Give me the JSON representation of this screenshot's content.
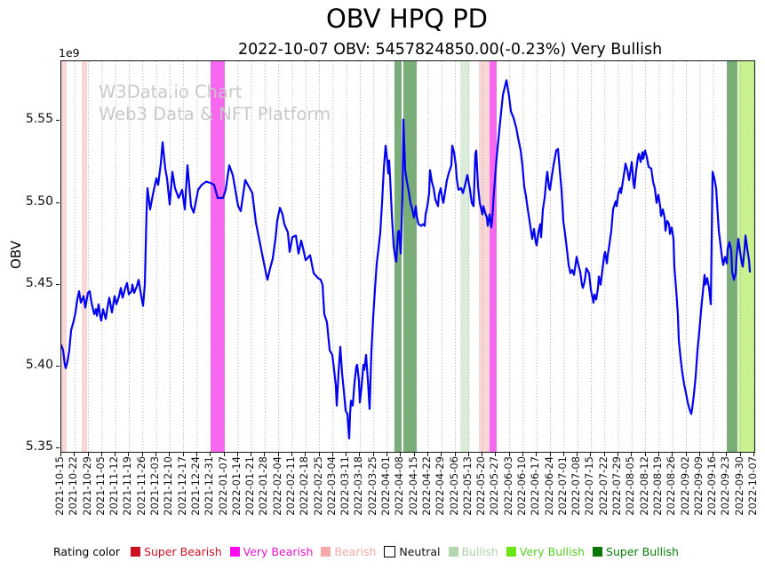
{
  "title": "OBV HPQ PD",
  "subtitle": "2022-10-07 OBV: 5457824850.00(-0.23%) Very Bullish",
  "watermark": {
    "line1": "W3Data.io Chart",
    "line2": "Web3 Data & NFT Platform"
  },
  "y_axis": {
    "label": "OBV",
    "offset_label": "1e9",
    "ticks": [
      5.35,
      5.4,
      5.45,
      5.5,
      5.55
    ]
  },
  "x_axis": {
    "tick_labels": [
      "2021-10-15",
      "2021-10-22",
      "2021-10-29",
      "2021-11-05",
      "2021-11-12",
      "2021-11-19",
      "2021-11-26",
      "2021-12-03",
      "2021-12-10",
      "2021-12-17",
      "2021-12-24",
      "2021-12-31",
      "2022-01-07",
      "2022-01-14",
      "2022-01-21",
      "2022-01-28",
      "2022-02-04",
      "2022-02-11",
      "2022-02-18",
      "2022-02-25",
      "2022-03-04",
      "2022-03-11",
      "2022-03-18",
      "2022-03-25",
      "2022-04-01",
      "2022-04-08",
      "2022-04-15",
      "2022-04-22",
      "2022-04-29",
      "2022-05-06",
      "2022-05-13",
      "2022-05-20",
      "2022-05-27",
      "2022-06-03",
      "2022-06-10",
      "2022-06-17",
      "2022-06-24",
      "2022-07-01",
      "2022-07-08",
      "2022-07-15",
      "2022-07-22",
      "2022-07-29",
      "2022-08-05",
      "2022-08-12",
      "2022-08-19",
      "2022-08-26",
      "2022-09-02",
      "2022-09-09",
      "2022-09-16",
      "2022-09-23",
      "2022-09-30",
      "2022-10-07"
    ]
  },
  "legend": {
    "title": "Rating color",
    "items": [
      {
        "label": "Super Bearish",
        "swatch": "#cc1122",
        "text_color": "#cc1122",
        "border": false
      },
      {
        "label": "Very Bearish",
        "swatch": "#fb0cf0",
        "text_color": "#e516c8",
        "border": false
      },
      {
        "label": "Bearish",
        "swatch": "#f7a8a8",
        "text_color": "#f5a9a9",
        "border": false
      },
      {
        "label": "Neutral",
        "swatch": "#ffffff",
        "text_color": "#111111",
        "border": true
      },
      {
        "label": "Bullish",
        "swatch": "#b2d7af",
        "text_color": "#aed2ab",
        "border": false
      },
      {
        "label": "Very Bullish",
        "swatch": "#69e613",
        "text_color": "#58cf25",
        "border": false
      },
      {
        "label": "Super Bullish",
        "swatch": "#087808",
        "text_color": "#0b7c0b",
        "border": false
      }
    ]
  },
  "colors": {
    "line": "#0202f0",
    "grid": "#9a9a9a",
    "watermark": "#c9c9c9",
    "bands": {
      "Super Bearish": "#e06060",
      "Very Bearish": "#f767ef",
      "Bearish": "#f9d7d7",
      "Neutral": "#ffffff",
      "Bullish": "#dcecdb",
      "Very Bullish": "#c9f18f",
      "Super Bullish": "#79ae79"
    }
  },
  "chart_data": {
    "type": "line",
    "title": "OBV HPQ PD",
    "series_name": "OBV",
    "ylabel": "OBV",
    "unit": "1e9",
    "ylim": [
      5.3478,
      5.5866
    ],
    "x_range": [
      "2021-10-15",
      "2022-10-07"
    ],
    "x_span": 780,
    "x_note": "x is position along the time axis, 0 = 2021-10-15, 780 = 2022-10-07 (daily OBV samples)",
    "grid": "vertical-dotted-weekly",
    "legend_position": "bottom",
    "last_date": "2022-10-07",
    "last_value": "5457824850.00",
    "last_change_pct": "-0.23%",
    "last_rating": "Very Bullish",
    "rating_bands": [
      {
        "start": 0,
        "end": 6,
        "rating": "Bearish"
      },
      {
        "start": 23,
        "end": 29,
        "rating": "Bearish"
      },
      {
        "start": 168,
        "end": 184,
        "rating": "Very Bearish"
      },
      {
        "start": 375,
        "end": 383,
        "rating": "Super Bullish"
      },
      {
        "start": 385,
        "end": 400,
        "rating": "Super Bullish"
      },
      {
        "start": 449,
        "end": 459,
        "rating": "Bullish"
      },
      {
        "start": 470,
        "end": 482,
        "rating": "Bearish"
      },
      {
        "start": 482,
        "end": 490,
        "rating": "Very Bearish"
      },
      {
        "start": 749,
        "end": 761,
        "rating": "Super Bullish"
      },
      {
        "start": 762,
        "end": 780,
        "rating": "Very Bullish"
      }
    ],
    "points": [
      [
        0,
        5.413
      ],
      [
        2,
        5.41
      ],
      [
        4,
        5.401
      ],
      [
        5,
        5.399
      ],
      [
        7,
        5.403
      ],
      [
        9,
        5.41
      ],
      [
        11,
        5.422
      ],
      [
        14,
        5.428
      ],
      [
        16,
        5.433
      ],
      [
        18,
        5.441
      ],
      [
        20,
        5.446
      ],
      [
        22,
        5.439
      ],
      [
        25,
        5.443
      ],
      [
        27,
        5.436
      ],
      [
        30,
        5.445
      ],
      [
        32,
        5.446
      ],
      [
        34,
        5.439
      ],
      [
        37,
        5.432
      ],
      [
        39,
        5.435
      ],
      [
        40,
        5.431
      ],
      [
        42,
        5.438
      ],
      [
        44,
        5.43
      ],
      [
        45,
        5.428
      ],
      [
        47,
        5.435
      ],
      [
        50,
        5.429
      ],
      [
        52,
        5.436
      ],
      [
        54,
        5.442
      ],
      [
        57,
        5.433
      ],
      [
        60,
        5.443
      ],
      [
        62,
        5.438
      ],
      [
        65,
        5.443
      ],
      [
        67,
        5.448
      ],
      [
        69,
        5.442
      ],
      [
        72,
        5.448
      ],
      [
        74,
        5.451
      ],
      [
        76,
        5.444
      ],
      [
        79,
        5.446
      ],
      [
        80,
        5.45
      ],
      [
        82,
        5.445
      ],
      [
        85,
        5.449
      ],
      [
        87,
        5.453
      ],
      [
        89,
        5.446
      ],
      [
        92,
        5.437
      ],
      [
        94,
        5.45
      ],
      [
        96,
        5.495
      ],
      [
        97,
        5.509
      ],
      [
        100,
        5.496
      ],
      [
        103,
        5.505
      ],
      [
        107,
        5.515
      ],
      [
        109,
        5.511
      ],
      [
        112,
        5.524
      ],
      [
        114,
        5.537
      ],
      [
        117,
        5.521
      ],
      [
        119,
        5.515
      ],
      [
        122,
        5.499
      ],
      [
        125,
        5.519
      ],
      [
        128,
        5.509
      ],
      [
        132,
        5.503
      ],
      [
        136,
        5.508
      ],
      [
        139,
        5.496
      ],
      [
        142,
        5.523
      ],
      [
        146,
        5.498
      ],
      [
        149,
        5.494
      ],
      [
        154,
        5.508
      ],
      [
        158,
        5.511
      ],
      [
        163,
        5.513
      ],
      [
        169,
        5.512
      ],
      [
        172,
        5.511
      ],
      [
        176,
        5.503
      ],
      [
        182,
        5.503
      ],
      [
        185,
        5.508
      ],
      [
        189,
        5.523
      ],
      [
        193,
        5.517
      ],
      [
        199,
        5.498
      ],
      [
        202,
        5.495
      ],
      [
        207,
        5.514
      ],
      [
        211,
        5.51
      ],
      [
        215,
        5.506
      ],
      [
        219,
        5.488
      ],
      [
        223,
        5.477
      ],
      [
        227,
        5.466
      ],
      [
        230,
        5.458
      ],
      [
        232,
        5.453
      ],
      [
        235,
        5.46
      ],
      [
        238,
        5.466
      ],
      [
        241,
        5.478
      ],
      [
        243,
        5.489
      ],
      [
        246,
        5.497
      ],
      [
        249,
        5.493
      ],
      [
        251,
        5.487
      ],
      [
        255,
        5.482
      ],
      [
        257,
        5.47
      ],
      [
        260,
        5.479
      ],
      [
        264,
        5.48
      ],
      [
        267,
        5.469
      ],
      [
        270,
        5.477
      ],
      [
        273,
        5.47
      ],
      [
        275,
        5.465
      ],
      [
        280,
        5.468
      ],
      [
        284,
        5.457
      ],
      [
        289,
        5.454
      ],
      [
        292,
        5.453
      ],
      [
        294,
        5.45
      ],
      [
        296,
        5.432
      ],
      [
        299,
        5.427
      ],
      [
        302,
        5.41
      ],
      [
        305,
        5.407
      ],
      [
        307,
        5.398
      ],
      [
        309,
        5.388
      ],
      [
        310,
        5.376
      ],
      [
        312,
        5.396
      ],
      [
        314,
        5.412
      ],
      [
        316,
        5.396
      ],
      [
        318,
        5.385
      ],
      [
        320,
        5.373
      ],
      [
        322,
        5.371
      ],
      [
        324,
        5.356
      ],
      [
        325,
        5.371
      ],
      [
        326,
        5.379
      ],
      [
        328,
        5.376
      ],
      [
        330,
        5.39
      ],
      [
        332,
        5.4
      ],
      [
        333,
        5.401
      ],
      [
        335,
        5.391
      ],
      [
        336,
        5.378
      ],
      [
        338,
        5.388
      ],
      [
        340,
        5.401
      ],
      [
        341,
        5.398
      ],
      [
        343,
        5.407
      ],
      [
        345,
        5.392
      ],
      [
        347,
        5.374
      ],
      [
        349,
        5.409
      ],
      [
        351,
        5.43
      ],
      [
        353,
        5.447
      ],
      [
        355,
        5.463
      ],
      [
        357,
        5.472
      ],
      [
        359,
        5.482
      ],
      [
        361,
        5.5
      ],
      [
        363,
        5.521
      ],
      [
        365,
        5.535
      ],
      [
        367,
        5.525
      ],
      [
        368,
        5.518
      ],
      [
        369,
        5.526
      ],
      [
        370,
        5.516
      ],
      [
        372,
        5.493
      ],
      [
        374,
        5.474
      ],
      [
        376,
        5.466
      ],
      [
        377,
        5.464
      ],
      [
        379,
        5.482
      ],
      [
        380,
        5.483
      ],
      [
        382,
        5.469
      ],
      [
        384,
        5.505
      ],
      [
        385,
        5.551
      ],
      [
        387,
        5.52
      ],
      [
        389,
        5.513
      ],
      [
        391,
        5.507
      ],
      [
        393,
        5.5
      ],
      [
        395,
        5.496
      ],
      [
        397,
        5.491
      ],
      [
        399,
        5.498
      ],
      [
        400,
        5.492
      ],
      [
        402,
        5.487
      ],
      [
        405,
        5.486
      ],
      [
        407,
        5.487
      ],
      [
        409,
        5.486
      ],
      [
        410,
        5.493
      ],
      [
        412,
        5.498
      ],
      [
        414,
        5.506
      ],
      [
        415,
        5.52
      ],
      [
        417,
        5.513
      ],
      [
        419,
        5.509
      ],
      [
        421,
        5.502
      ],
      [
        424,
        5.498
      ],
      [
        425,
        5.505
      ],
      [
        427,
        5.509
      ],
      [
        429,
        5.502
      ],
      [
        430,
        5.5
      ],
      [
        432,
        5.507
      ],
      [
        434,
        5.514
      ],
      [
        436,
        5.518
      ],
      [
        439,
        5.523
      ],
      [
        440,
        5.535
      ],
      [
        442,
        5.531
      ],
      [
        444,
        5.523
      ],
      [
        445,
        5.515
      ],
      [
        447,
        5.508
      ],
      [
        450,
        5.509
      ],
      [
        452,
        5.506
      ],
      [
        454,
        5.51
      ],
      [
        457,
        5.517
      ],
      [
        460,
        5.508
      ],
      [
        462,
        5.5
      ],
      [
        464,
        5.498
      ],
      [
        466,
        5.53
      ],
      [
        467,
        5.532
      ],
      [
        469,
        5.51
      ],
      [
        471,
        5.5
      ],
      [
        474,
        5.493
      ],
      [
        475,
        5.498
      ],
      [
        477,
        5.494
      ],
      [
        479,
        5.491
      ],
      [
        480,
        5.486
      ],
      [
        482,
        5.493
      ],
      [
        484,
        5.485
      ],
      [
        485,
        5.49
      ],
      [
        487,
        5.507
      ],
      [
        490,
        5.528
      ],
      [
        494,
        5.55
      ],
      [
        497,
        5.566
      ],
      [
        501,
        5.575
      ],
      [
        504,
        5.565
      ],
      [
        506,
        5.556
      ],
      [
        509,
        5.552
      ],
      [
        512,
        5.546
      ],
      [
        514,
        5.54
      ],
      [
        517,
        5.532
      ],
      [
        519,
        5.523
      ],
      [
        521,
        5.51
      ],
      [
        523,
        5.504
      ],
      [
        525,
        5.496
      ],
      [
        527,
        5.489
      ],
      [
        530,
        5.478
      ],
      [
        532,
        5.484
      ],
      [
        534,
        5.476
      ],
      [
        535,
        5.474
      ],
      [
        537,
        5.482
      ],
      [
        539,
        5.487
      ],
      [
        540,
        5.479
      ],
      [
        542,
        5.496
      ],
      [
        544,
        5.503
      ],
      [
        546,
        5.515
      ],
      [
        547,
        5.519
      ],
      [
        549,
        5.509
      ],
      [
        550,
        5.508
      ],
      [
        552,
        5.516
      ],
      [
        554,
        5.523
      ],
      [
        557,
        5.532
      ],
      [
        559,
        5.533
      ],
      [
        561,
        5.52
      ],
      [
        563,
        5.508
      ],
      [
        565,
        5.489
      ],
      [
        567,
        5.481
      ],
      [
        569,
        5.472
      ],
      [
        571,
        5.462
      ],
      [
        573,
        5.457
      ],
      [
        575,
        5.459
      ],
      [
        577,
        5.456
      ],
      [
        579,
        5.463
      ],
      [
        580,
        5.467
      ],
      [
        582,
        5.462
      ],
      [
        584,
        5.458
      ],
      [
        586,
        5.45
      ],
      [
        587,
        5.448
      ],
      [
        589,
        5.452
      ],
      [
        591,
        5.46
      ],
      [
        594,
        5.457
      ],
      [
        596,
        5.447
      ],
      [
        599,
        5.439
      ],
      [
        600,
        5.444
      ],
      [
        602,
        5.441
      ],
      [
        604,
        5.448
      ],
      [
        605,
        5.455
      ],
      [
        607,
        5.45
      ],
      [
        609,
        5.459
      ],
      [
        611,
        5.468
      ],
      [
        612,
        5.47
      ],
      [
        614,
        5.463
      ],
      [
        615,
        5.468
      ],
      [
        617,
        5.475
      ],
      [
        619,
        5.483
      ],
      [
        621,
        5.496
      ],
      [
        624,
        5.501
      ],
      [
        625,
        5.498
      ],
      [
        627,
        5.506
      ],
      [
        629,
        5.509
      ],
      [
        630,
        5.506
      ],
      [
        634,
        5.52
      ],
      [
        635,
        5.524
      ],
      [
        637,
        5.52
      ],
      [
        639,
        5.514
      ],
      [
        642,
        5.525
      ],
      [
        644,
        5.512
      ],
      [
        645,
        5.509
      ],
      [
        647,
        5.52
      ],
      [
        649,
        5.528
      ],
      [
        650,
        5.53
      ],
      [
        652,
        5.525
      ],
      [
        654,
        5.531
      ],
      [
        655,
        5.527
      ],
      [
        657,
        5.532
      ],
      [
        659,
        5.528
      ],
      [
        661,
        5.522
      ],
      [
        664,
        5.521
      ],
      [
        666,
        5.513
      ],
      [
        668,
        5.509
      ],
      [
        670,
        5.5
      ],
      [
        672,
        5.505
      ],
      [
        674,
        5.498
      ],
      [
        675,
        5.492
      ],
      [
        677,
        5.496
      ],
      [
        679,
        5.491
      ],
      [
        680,
        5.483
      ],
      [
        682,
        5.489
      ],
      [
        684,
        5.487
      ],
      [
        685,
        5.481
      ],
      [
        687,
        5.485
      ],
      [
        689,
        5.478
      ],
      [
        690,
        5.461
      ],
      [
        692,
        5.447
      ],
      [
        694,
        5.431
      ],
      [
        695,
        5.416
      ],
      [
        697,
        5.405
      ],
      [
        699,
        5.396
      ],
      [
        701,
        5.389
      ],
      [
        703,
        5.384
      ],
      [
        705,
        5.378
      ],
      [
        707,
        5.374
      ],
      [
        709,
        5.371
      ],
      [
        710,
        5.374
      ],
      [
        712,
        5.383
      ],
      [
        714,
        5.394
      ],
      [
        716,
        5.41
      ],
      [
        718,
        5.421
      ],
      [
        720,
        5.434
      ],
      [
        722,
        5.445
      ],
      [
        724,
        5.456
      ],
      [
        725,
        5.45
      ],
      [
        727,
        5.454
      ],
      [
        729,
        5.448
      ],
      [
        731,
        5.438
      ],
      [
        733,
        5.519
      ],
      [
        735,
        5.515
      ],
      [
        737,
        5.509
      ],
      [
        740,
        5.483
      ],
      [
        742,
        5.474
      ],
      [
        744,
        5.465
      ],
      [
        745,
        5.462
      ],
      [
        747,
        5.467
      ],
      [
        749,
        5.463
      ],
      [
        750,
        5.472
      ],
      [
        752,
        5.476
      ],
      [
        754,
        5.471
      ],
      [
        755,
        5.458
      ],
      [
        757,
        5.453
      ],
      [
        759,
        5.457
      ],
      [
        760,
        5.467
      ],
      [
        762,
        5.478
      ],
      [
        764,
        5.47
      ],
      [
        766,
        5.463
      ],
      [
        767,
        5.461
      ],
      [
        769,
        5.472
      ],
      [
        770,
        5.48
      ],
      [
        772,
        5.472
      ],
      [
        774,
        5.465
      ],
      [
        775,
        5.458
      ]
    ]
  }
}
